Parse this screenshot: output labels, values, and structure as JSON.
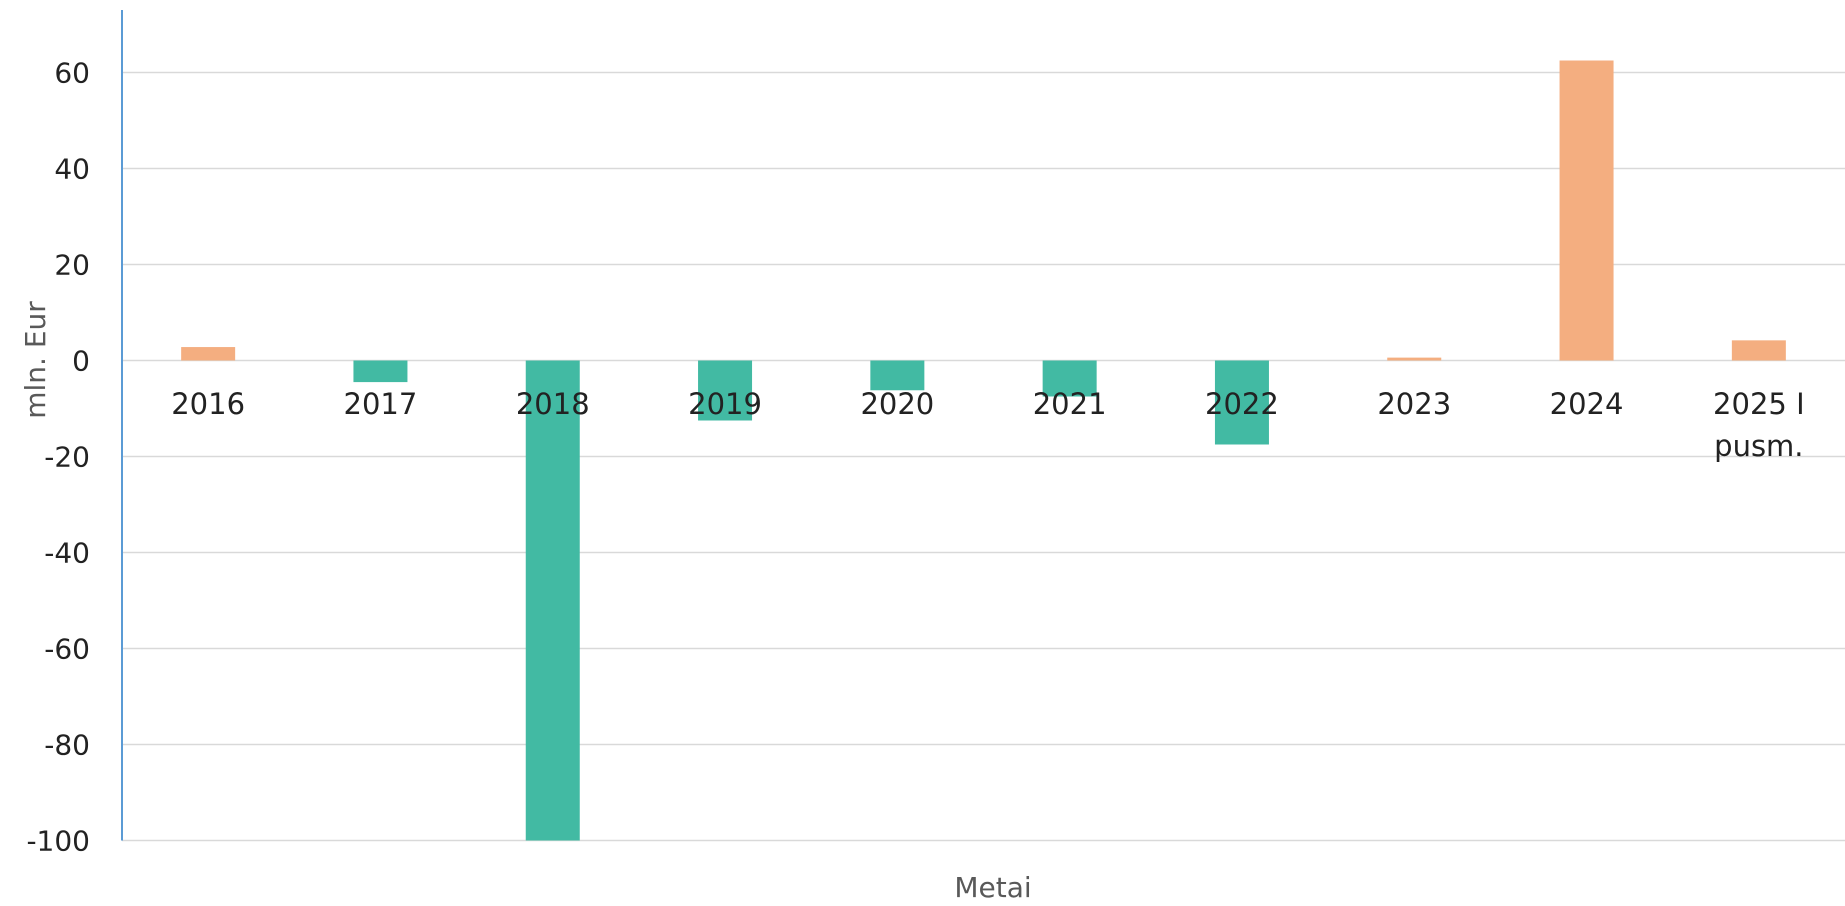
{
  "chart_data": {
    "type": "bar",
    "title": "",
    "xlabel": "Metai",
    "ylabel": "mln. Eur",
    "categories": [
      [
        "2016"
      ],
      [
        "2017"
      ],
      [
        "2018"
      ],
      [
        "2019"
      ],
      [
        "2020"
      ],
      [
        "2021"
      ],
      [
        "2022"
      ],
      [
        "2023"
      ],
      [
        "2024"
      ],
      [
        "2025 I",
        "pusm."
      ]
    ],
    "values": [
      2.8,
      -4.5,
      -100,
      -12.5,
      -6.2,
      -7.5,
      -17.5,
      0.6,
      62.5,
      4.2
    ],
    "ylim": [
      -100,
      70
    ],
    "yticks": [
      60,
      40,
      20,
      0,
      -20,
      -40,
      -60,
      -80,
      -100
    ],
    "grid": true,
    "legend": "none",
    "colors": {
      "positive": "#F4AE80",
      "negative": "#42BAA3",
      "grid": "#D9D9D9",
      "yaxis": "#5B9BD5"
    }
  }
}
